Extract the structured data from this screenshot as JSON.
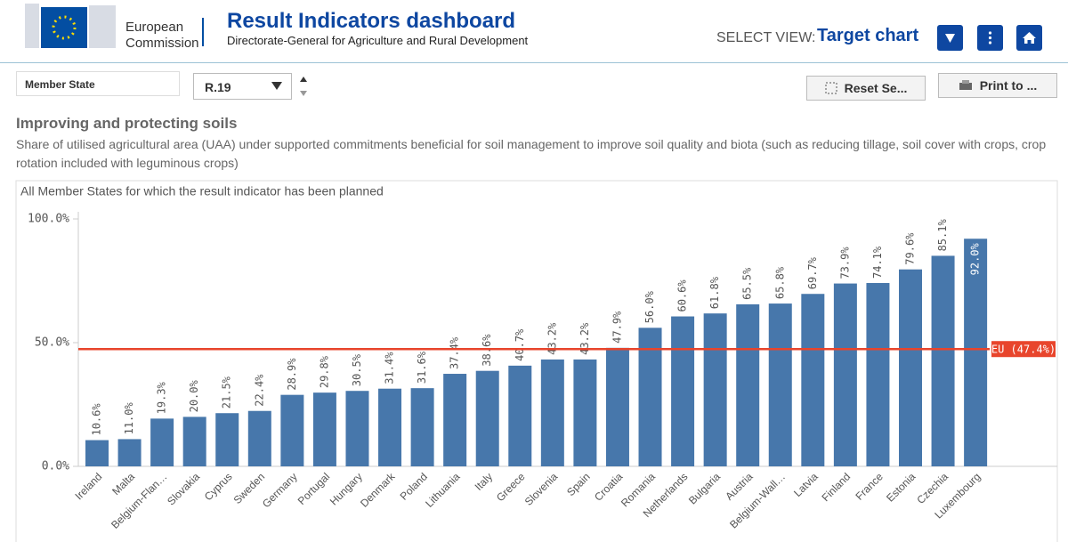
{
  "header": {
    "logo_lines": [
      "European",
      "Commission"
    ],
    "title": "Result Indicators dashboard",
    "subtitle": "Directorate-General for Agriculture and Rural Development",
    "select_view_label": "SELECT VIEW:",
    "select_view_value": "Target chart"
  },
  "toolbar": {
    "filter": "Member State",
    "indicator": "R.19",
    "reset_button": "Reset Se...",
    "print_button": "Print to ..."
  },
  "section": {
    "title": "Improving and protecting soils",
    "description": "Share of utilised agricultural area (UAA) under supported commitments beneficial for soil management to improve soil quality and biota (such as reducing tillage, soil cover with crops, crop rotation included with leguminous crops)"
  },
  "chart_data": {
    "type": "bar",
    "title": "All Member States for which the result indicator has been planned",
    "categories": [
      "Ireland",
      "Malta",
      "Belgium-Flan…",
      "Slovakia",
      "Cyprus",
      "Sweden",
      "Germany",
      "Portugal",
      "Hungary",
      "Denmark",
      "Poland",
      "Lithuania",
      "Italy",
      "Greece",
      "Slovenia",
      "Spain",
      "Croatia",
      "Romania",
      "Netherlands",
      "Bulgaria",
      "Austria",
      "Belgium-Wall…",
      "Latvia",
      "Finland",
      "France",
      "Estonia",
      "Czechia",
      "Luxembourg"
    ],
    "values": [
      10.6,
      11.0,
      19.3,
      20.0,
      21.5,
      22.4,
      28.9,
      29.8,
      30.5,
      31.4,
      31.6,
      37.4,
      38.6,
      40.7,
      43.2,
      43.2,
      47.9,
      56.0,
      60.6,
      61.8,
      65.5,
      65.8,
      69.7,
      73.9,
      74.1,
      79.6,
      85.1,
      92.0
    ],
    "value_labels": [
      "10.6%",
      "11.0%",
      "19.3%",
      "20.0%",
      "21.5%",
      "22.4%",
      "28.9%",
      "29.8%",
      "30.5%",
      "31.4%",
      "31.6%",
      "37.4%",
      "38.6%",
      "40.7%",
      "43.2%",
      "43.2%",
      "47.9%",
      "56.0%",
      "60.6%",
      "61.8%",
      "65.5%",
      "65.8%",
      "69.7%",
      "73.9%",
      "74.1%",
      "79.6%",
      "85.1%",
      "92.0%"
    ],
    "color": "#4777ab",
    "ylim": [
      0,
      100
    ],
    "yticks": [
      {
        "value": 0,
        "label": "0.0%"
      },
      {
        "value": 50,
        "label": "50.0%"
      },
      {
        "value": 100,
        "label": "100.0%"
      }
    ],
    "reference_line": {
      "value": 47.4,
      "label": "EU (47.4%)",
      "color": "#e8452c"
    }
  }
}
